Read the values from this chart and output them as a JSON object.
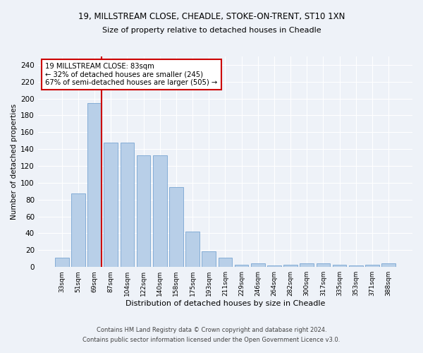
{
  "title_line1": "19, MILLSTREAM CLOSE, CHEADLE, STOKE-ON-TRENT, ST10 1XN",
  "title_line2": "Size of property relative to detached houses in Cheadle",
  "xlabel": "Distribution of detached houses by size in Cheadle",
  "ylabel": "Number of detached properties",
  "categories": [
    "33sqm",
    "51sqm",
    "69sqm",
    "87sqm",
    "104sqm",
    "122sqm",
    "140sqm",
    "158sqm",
    "175sqm",
    "193sqm",
    "211sqm",
    "229sqm",
    "246sqm",
    "264sqm",
    "282sqm",
    "300sqm",
    "317sqm",
    "335sqm",
    "353sqm",
    "371sqm",
    "388sqm"
  ],
  "values": [
    11,
    87,
    195,
    148,
    148,
    133,
    133,
    95,
    42,
    19,
    11,
    3,
    4,
    2,
    3,
    4,
    4,
    3,
    2,
    3,
    4
  ],
  "bar_color": "#b8cfe8",
  "bar_edgecolor": "#6699cc",
  "vline_color": "#cc0000",
  "annotation_text": "19 MILLSTREAM CLOSE: 83sqm\n← 32% of detached houses are smaller (245)\n67% of semi-detached houses are larger (505) →",
  "annotation_box_color": "#ffffff",
  "annotation_box_edgecolor": "#cc0000",
  "ylim": [
    0,
    250
  ],
  "yticks": [
    0,
    20,
    40,
    60,
    80,
    100,
    120,
    140,
    160,
    180,
    200,
    220,
    240
  ],
  "footer_line1": "Contains HM Land Registry data © Crown copyright and database right 2024.",
  "footer_line2": "Contains public sector information licensed under the Open Government Licence v3.0.",
  "bg_color": "#eef2f8",
  "plot_bg_color": "#eef2f8"
}
